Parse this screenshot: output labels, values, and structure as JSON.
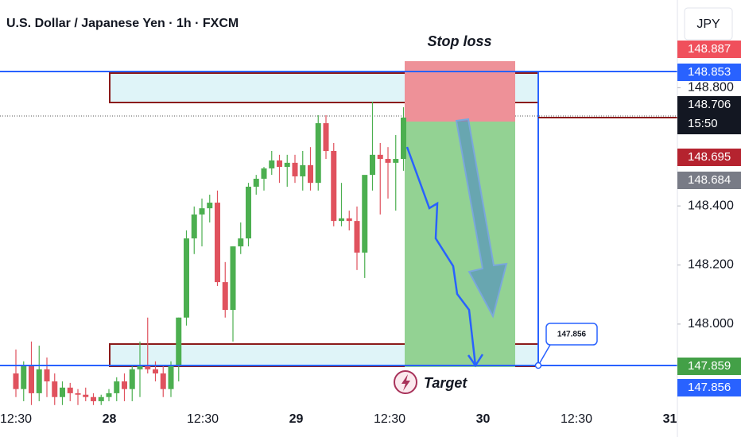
{
  "chart_data": {
    "type": "candlestick",
    "title": "U.S. Dollar / Japanese Yen · 1h · FXCM",
    "currency": "JPY",
    "annotations": {
      "stop_loss": "Stop loss",
      "target": "Target",
      "callout": "147.856"
    },
    "up_color": "#4caf50",
    "down_color": "#e0525e",
    "ylim": [
      147.72,
      149.097
    ],
    "yticks": [
      {
        "value": 148.0,
        "label": "148.000"
      },
      {
        "value": 148.2,
        "label": "148.200"
      },
      {
        "value": 148.4,
        "label": "148.400"
      },
      {
        "value": 148.8,
        "label": "148.800"
      }
    ],
    "x_tick_labels": [
      "12:30",
      "28",
      "12:30",
      "29",
      "12:30",
      "30",
      "12:30",
      "31"
    ],
    "open": [
      147.833,
      147.78,
      147.86,
      147.766,
      147.847,
      147.806,
      147.753,
      147.785,
      147.766,
      147.761,
      147.753,
      147.739,
      147.753,
      147.766,
      147.806,
      147.78,
      147.847,
      147.86,
      147.847,
      147.833,
      147.78,
      147.86,
      148.022,
      148.29,
      148.371,
      148.392,
      148.411,
      148.142,
      148.048,
      148.263,
      148.29,
      148.465,
      148.492,
      148.527,
      148.554,
      148.532,
      148.546,
      148.5,
      148.538,
      148.478,
      148.68,
      148.586,
      148.349,
      148.358,
      148.349,
      148.242,
      148.505,
      148.573,
      148.559,
      148.546,
      148.559
    ],
    "high": [
      147.914,
      147.874,
      147.941,
      147.927,
      147.887,
      147.833,
      147.806,
      147.801,
      147.78,
      147.785,
      147.766,
      147.761,
      147.78,
      147.82,
      147.833,
      147.86,
      147.941,
      148.022,
      147.874,
      147.86,
      147.874,
      148.022,
      148.317,
      148.398,
      148.425,
      148.438,
      148.452,
      148.21,
      148.263,
      148.344,
      148.478,
      148.505,
      148.532,
      148.586,
      148.573,
      148.573,
      148.573,
      148.586,
      148.599,
      148.707,
      148.707,
      148.613,
      148.478,
      148.384,
      148.398,
      148.492,
      148.753,
      148.613,
      148.599,
      148.64,
      148.734
    ],
    "low": [
      147.753,
      147.739,
      147.726,
      147.739,
      147.753,
      147.726,
      147.726,
      147.739,
      147.726,
      147.739,
      147.726,
      147.726,
      147.739,
      147.739,
      147.739,
      147.739,
      147.753,
      147.833,
      147.806,
      147.753,
      147.753,
      147.806,
      147.995,
      148.237,
      148.263,
      148.344,
      148.129,
      148.022,
      147.941,
      148.237,
      148.263,
      148.438,
      148.452,
      148.505,
      148.478,
      148.465,
      148.478,
      148.452,
      148.452,
      148.452,
      148.559,
      148.331,
      148.331,
      148.317,
      148.183,
      148.156,
      148.452,
      148.371,
      148.425,
      148.384,
      148.519
    ],
    "close": [
      147.78,
      147.86,
      147.766,
      147.847,
      147.806,
      147.753,
      147.785,
      147.766,
      147.761,
      147.753,
      147.739,
      147.753,
      147.766,
      147.806,
      147.78,
      147.847,
      147.86,
      147.847,
      147.833,
      147.78,
      147.86,
      148.022,
      148.29,
      148.371,
      148.392,
      148.411,
      148.142,
      148.048,
      148.263,
      148.29,
      148.465,
      148.492,
      148.527,
      148.554,
      148.532,
      148.546,
      148.5,
      148.538,
      148.478,
      148.68,
      148.586,
      148.349,
      148.358,
      148.349,
      148.242,
      148.505,
      148.573,
      148.559,
      148.546,
      148.559,
      148.699
    ],
    "price_badges": [
      {
        "value": 148.887,
        "color": "#f0505c"
      },
      {
        "value": 148.853,
        "color": "#2962ff"
      },
      {
        "value": 148.706,
        "color": "#131722",
        "countdown": "15:50"
      },
      {
        "value": 148.695,
        "color": "#b5232f"
      },
      {
        "value": 148.684,
        "color": "#787b86"
      },
      {
        "value": 147.859,
        "color": "#43a047"
      },
      {
        "value": 147.856,
        "color": "#2962ff"
      }
    ]
  }
}
